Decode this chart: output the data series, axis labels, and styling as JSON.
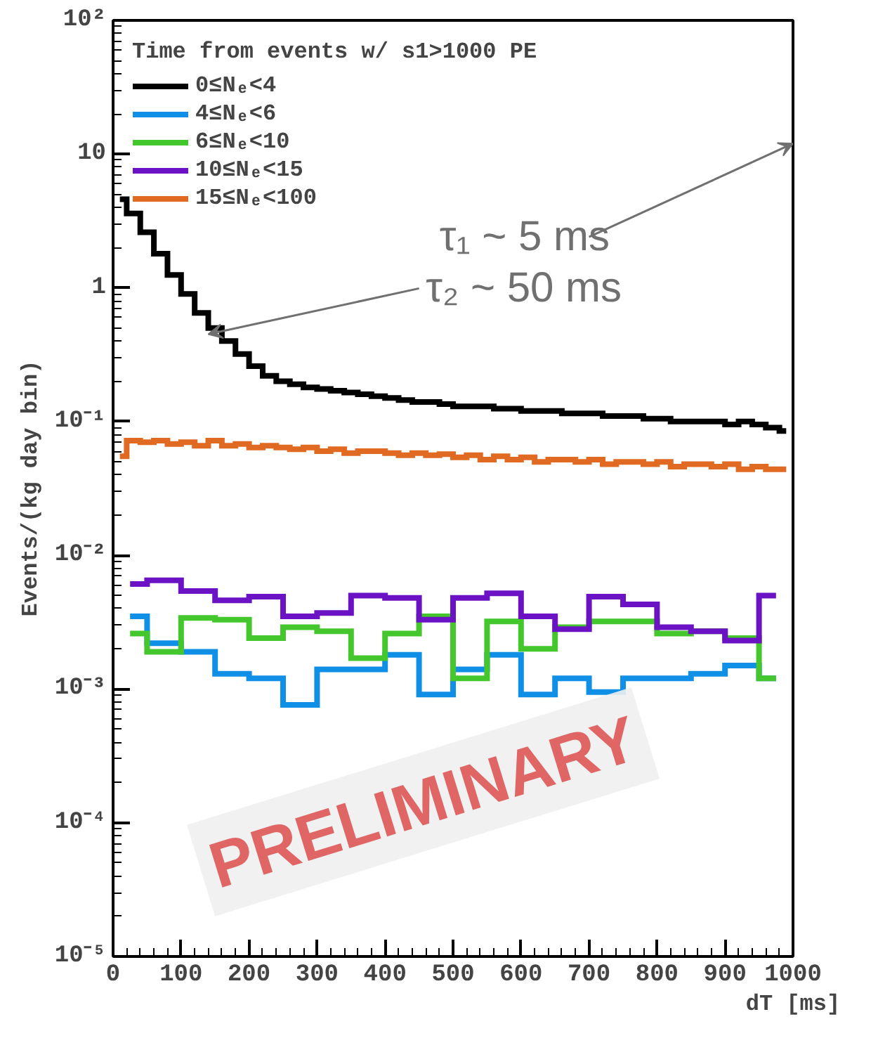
{
  "chart_data": {
    "type": "step",
    "xlabel": "dT [ms]",
    "ylabel": "Events/(kg day bin)",
    "legend_title": "Time from events w/ s1>1000 PE",
    "legend": "top left",
    "log": "y",
    "grid": false,
    "xlim": [
      0,
      1000
    ],
    "xticks": [
      0,
      100,
      200,
      300,
      400,
      500,
      600,
      700,
      800,
      900,
      1000
    ],
    "ylim": [
      1e-05,
      100
    ],
    "yticks": [
      {
        "value": 1e-05,
        "label": "10⁻⁵"
      },
      {
        "value": 0.0001,
        "label": "10⁻⁴"
      },
      {
        "value": 0.001,
        "label": "10⁻³"
      },
      {
        "value": 0.01,
        "label": "10⁻²"
      },
      {
        "value": 0.1,
        "label": "10⁻¹"
      },
      1,
      10,
      {
        "value": 100,
        "label": "10²"
      }
    ],
    "series": [
      {
        "name": "0≤Nₑ<4",
        "color": "#000000",
        "x": [
          10,
          30,
          50,
          70,
          90,
          110,
          130,
          150,
          170,
          190,
          210,
          230,
          250,
          270,
          290,
          310,
          330,
          350,
          370,
          390,
          410,
          430,
          450,
          470,
          490,
          510,
          530,
          550,
          570,
          590,
          610,
          630,
          650,
          670,
          690,
          710,
          730,
          750,
          770,
          790,
          810,
          830,
          850,
          870,
          890,
          910,
          930,
          950,
          970,
          990
        ],
        "values": [
          4.6,
          3.6,
          2.6,
          1.8,
          1.25,
          0.9,
          0.65,
          0.5,
          0.4,
          0.32,
          0.26,
          0.22,
          0.2,
          0.19,
          0.18,
          0.175,
          0.17,
          0.165,
          0.16,
          0.155,
          0.15,
          0.145,
          0.14,
          0.14,
          0.135,
          0.13,
          0.13,
          0.13,
          0.125,
          0.125,
          0.12,
          0.12,
          0.12,
          0.115,
          0.115,
          0.115,
          0.11,
          0.11,
          0.11,
          0.105,
          0.105,
          0.1,
          0.1,
          0.1,
          0.1,
          0.095,
          0.1,
          0.095,
          0.09,
          0.085
        ]
      },
      {
        "name": "4≤Nₑ<6",
        "color": "#0f8fe6",
        "x": [
          25,
          75,
          125,
          175,
          225,
          275,
          325,
          375,
          425,
          475,
          525,
          575,
          625,
          675,
          725,
          775,
          825,
          875,
          925,
          975
        ],
        "values": [
          0.0035,
          0.0022,
          0.0019,
          0.0013,
          0.0012,
          0.00076,
          0.0014,
          0.0014,
          0.0018,
          0.00091,
          0.0014,
          0.0018,
          0.00091,
          0.0012,
          0.00095,
          0.0012,
          0.0012,
          0.0013,
          0.0015,
          0.0012
        ]
      },
      {
        "name": "6≤Nₑ<10",
        "color": "#44c72c",
        "x": [
          25,
          75,
          125,
          175,
          225,
          275,
          325,
          375,
          425,
          475,
          525,
          575,
          625,
          675,
          725,
          775,
          825,
          875,
          925,
          975
        ],
        "values": [
          0.0026,
          0.0019,
          0.0034,
          0.0033,
          0.0024,
          0.0029,
          0.0027,
          0.0017,
          0.0026,
          0.0035,
          0.0012,
          0.0032,
          0.002,
          0.0029,
          0.0032,
          0.0032,
          0.0026,
          0.0027,
          0.0024,
          0.0012
        ]
      },
      {
        "name": "10≤Nₑ<15",
        "color": "#6a12c4",
        "x": [
          25,
          75,
          125,
          175,
          225,
          275,
          325,
          375,
          425,
          475,
          525,
          575,
          625,
          675,
          725,
          775,
          825,
          875,
          925,
          975
        ],
        "values": [
          0.0061,
          0.0065,
          0.0054,
          0.0046,
          0.0049,
          0.0035,
          0.0037,
          0.005,
          0.0048,
          0.0033,
          0.0048,
          0.0052,
          0.0035,
          0.0028,
          0.0049,
          0.0043,
          0.0029,
          0.0027,
          0.0023,
          0.005
        ]
      },
      {
        "name": "15≤Nₑ<100",
        "color": "#e06a22",
        "x": [
          10,
          30,
          50,
          70,
          90,
          110,
          130,
          150,
          170,
          190,
          210,
          230,
          250,
          270,
          290,
          310,
          330,
          350,
          370,
          390,
          410,
          430,
          450,
          470,
          490,
          510,
          530,
          550,
          570,
          590,
          610,
          630,
          650,
          670,
          690,
          710,
          730,
          750,
          770,
          790,
          810,
          830,
          850,
          870,
          890,
          910,
          930,
          950,
          970,
          990
        ],
        "values": [
          0.055,
          0.072,
          0.07,
          0.072,
          0.068,
          0.07,
          0.066,
          0.072,
          0.066,
          0.068,
          0.064,
          0.066,
          0.064,
          0.062,
          0.064,
          0.06,
          0.062,
          0.058,
          0.06,
          0.06,
          0.058,
          0.056,
          0.058,
          0.056,
          0.057,
          0.054,
          0.056,
          0.052,
          0.055,
          0.052,
          0.054,
          0.05,
          0.052,
          0.052,
          0.05,
          0.052,
          0.048,
          0.05,
          0.05,
          0.048,
          0.05,
          0.046,
          0.048,
          0.048,
          0.046,
          0.048,
          0.044,
          0.046,
          0.044,
          0.044
        ]
      }
    ],
    "annotations": [
      "τ₁ ~ 5 ms",
      {
        "text": "τ₂ ~ 50 ms",
        "x": 140,
        "y": 0.45
      },
      "PRELIMINARY"
    ]
  }
}
